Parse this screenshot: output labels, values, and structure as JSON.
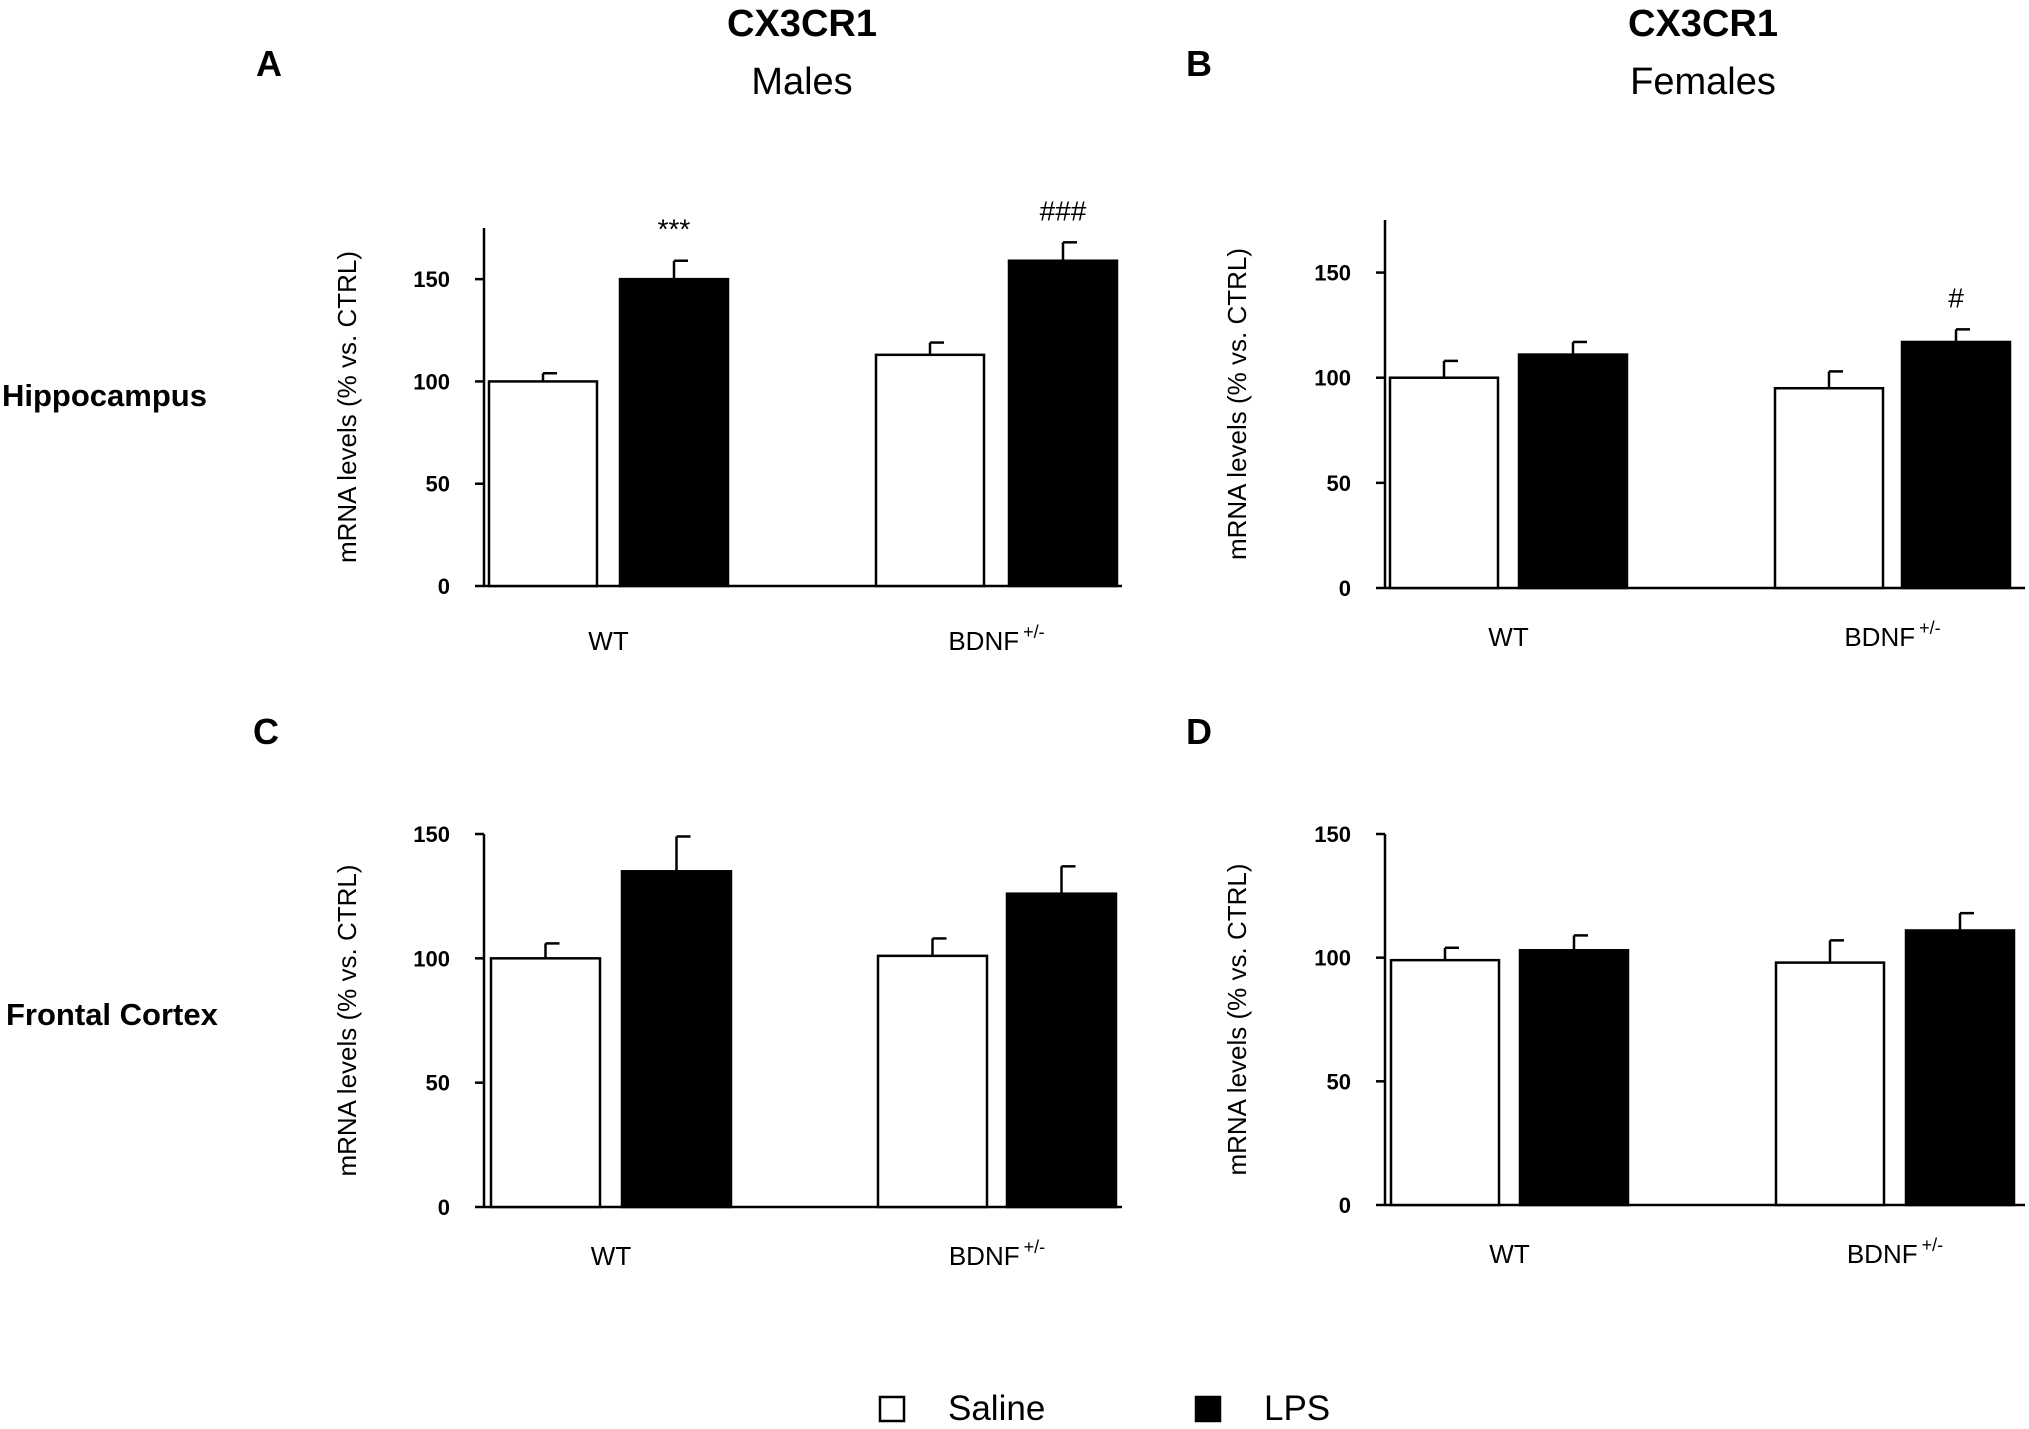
{
  "figure": {
    "column_titles": [
      {
        "gene": "CX3CR1",
        "sex": "Males"
      },
      {
        "gene": "CX3CR1",
        "sex": "Females"
      }
    ],
    "row_labels": [
      "Hippocampus",
      "Frontal Cortex"
    ],
    "legend": [
      {
        "label": "Saline",
        "color": "#ffffff"
      },
      {
        "label": "LPS",
        "color": "#000000"
      }
    ]
  },
  "chart_data": [
    {
      "panel": "A",
      "type": "bar",
      "ylabel": "mRNA levels (% vs. CTRL)",
      "ylim": [
        0,
        175
      ],
      "yticks": [
        0,
        50,
        100,
        150
      ],
      "categories": [
        {
          "base": "WT",
          "sup": ""
        },
        {
          "base": "BDNF",
          "sup": "+/-"
        }
      ],
      "series": [
        {
          "name": "Saline",
          "color": "#ffffff",
          "values": [
            100,
            113
          ],
          "errors": [
            4,
            6
          ]
        },
        {
          "name": "LPS",
          "color": "#000000",
          "values": [
            150,
            159
          ],
          "errors": [
            9,
            9
          ]
        }
      ],
      "annotations": [
        {
          "series": 1,
          "category": 0,
          "text": "***"
        },
        {
          "series": 1,
          "category": 1,
          "text": "###"
        }
      ]
    },
    {
      "panel": "B",
      "type": "bar",
      "ylabel": "mRNA levels (% vs. CTRL)",
      "ylim": [
        0,
        175
      ],
      "yticks": [
        0,
        50,
        100,
        150
      ],
      "categories": [
        {
          "base": "WT",
          "sup": ""
        },
        {
          "base": "BDNF",
          "sup": "+/-"
        }
      ],
      "series": [
        {
          "name": "Saline",
          "color": "#ffffff",
          "values": [
            100,
            95
          ],
          "errors": [
            8,
            8
          ]
        },
        {
          "name": "LPS",
          "color": "#000000",
          "values": [
            111,
            117
          ],
          "errors": [
            6,
            6
          ]
        }
      ],
      "annotations": [
        {
          "series": 1,
          "category": 1,
          "text": "#"
        }
      ]
    },
    {
      "panel": "C",
      "type": "bar",
      "ylabel": "mRNA levels (% vs. CTRL)",
      "ylim": [
        0,
        150
      ],
      "yticks": [
        0,
        50,
        100,
        150
      ],
      "categories": [
        {
          "base": "WT",
          "sup": ""
        },
        {
          "base": "BDNF",
          "sup": "+/-"
        }
      ],
      "series": [
        {
          "name": "Saline",
          "color": "#ffffff",
          "values": [
            100,
            101
          ],
          "errors": [
            6,
            7
          ]
        },
        {
          "name": "LPS",
          "color": "#000000",
          "values": [
            135,
            126
          ],
          "errors": [
            14,
            11
          ]
        }
      ],
      "annotations": []
    },
    {
      "panel": "D",
      "type": "bar",
      "ylabel": "mRNA levels (% vs. CTRL)",
      "ylim": [
        0,
        150
      ],
      "yticks": [
        0,
        50,
        100,
        150
      ],
      "categories": [
        {
          "base": "WT",
          "sup": ""
        },
        {
          "base": "BDNF",
          "sup": "+/-"
        }
      ],
      "series": [
        {
          "name": "Saline",
          "color": "#ffffff",
          "values": [
            99,
            98
          ],
          "errors": [
            5,
            9
          ]
        },
        {
          "name": "LPS",
          "color": "#000000",
          "values": [
            103,
            111
          ],
          "errors": [
            6,
            7
          ]
        }
      ],
      "annotations": []
    }
  ]
}
